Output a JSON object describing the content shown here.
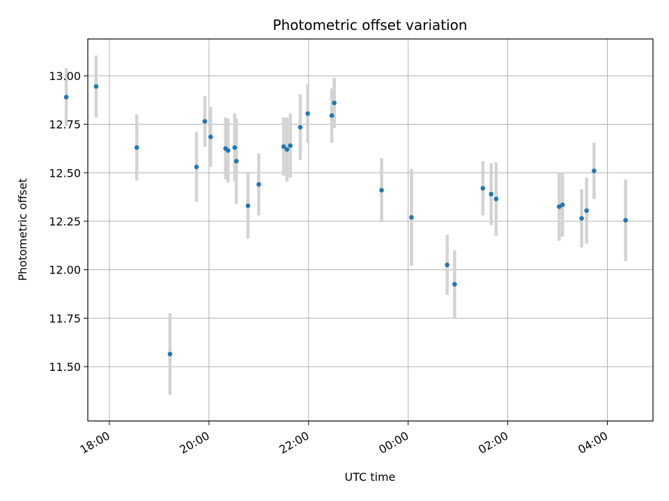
{
  "chart_data": {
    "type": "scatter",
    "title": "Photometric offset variation",
    "xlabel": "UTC time",
    "ylabel": "Photometric offset",
    "x_unit": "UTC time (HH:MM)",
    "xlim": [
      "17:34",
      "04:55"
    ],
    "ylim": [
      11.22,
      13.19
    ],
    "x_ticks": [
      "18:00",
      "20:00",
      "22:00",
      "00:00",
      "02:00",
      "04:00"
    ],
    "y_ticks": [
      11.5,
      11.75,
      12.0,
      12.25,
      12.5,
      12.75,
      13.0
    ],
    "grid": true,
    "point_color": "#1f77b4",
    "errorbar_color": "#d3d3d3",
    "points": [
      {
        "t": "17:08",
        "y": 12.89,
        "err": 0.15
      },
      {
        "t": "17:44",
        "y": 12.945,
        "err": 0.16
      },
      {
        "t": "18:33",
        "y": 12.63,
        "err": 0.17
      },
      {
        "t": "19:13",
        "y": 11.565,
        "err": 0.21
      },
      {
        "t": "19:45",
        "y": 12.53,
        "err": 0.18
      },
      {
        "t": "19:55",
        "y": 12.765,
        "err": 0.13
      },
      {
        "t": "20:02",
        "y": 12.685,
        "err": 0.155
      },
      {
        "t": "20:20",
        "y": 12.625,
        "err": 0.16
      },
      {
        "t": "20:23",
        "y": 12.615,
        "err": 0.165
      },
      {
        "t": "20:31",
        "y": 12.63,
        "err": 0.175
      },
      {
        "t": "20:33",
        "y": 12.56,
        "err": 0.22
      },
      {
        "t": "20:47",
        "y": 12.33,
        "err": 0.17
      },
      {
        "t": "21:00",
        "y": 12.44,
        "err": 0.16
      },
      {
        "t": "21:30",
        "y": 12.635,
        "err": 0.15
      },
      {
        "t": "21:34",
        "y": 12.62,
        "err": 0.165
      },
      {
        "t": "21:38",
        "y": 12.64,
        "err": 0.165
      },
      {
        "t": "21:50",
        "y": 12.735,
        "err": 0.17
      },
      {
        "t": "21:59",
        "y": 12.805,
        "err": 0.15
      },
      {
        "t": "22:28",
        "y": 12.795,
        "err": 0.14
      },
      {
        "t": "22:31",
        "y": 12.86,
        "err": 0.13
      },
      {
        "t": "23:28",
        "y": 12.41,
        "err": 0.165
      },
      {
        "t": "00:04",
        "y": 12.27,
        "err": 0.25
      },
      {
        "t": "00:47",
        "y": 12.025,
        "err": 0.155
      },
      {
        "t": "00:56",
        "y": 11.925,
        "err": 0.175
      },
      {
        "t": "01:30",
        "y": 12.42,
        "err": 0.14
      },
      {
        "t": "01:40",
        "y": 12.39,
        "err": 0.16
      },
      {
        "t": "01:46",
        "y": 12.365,
        "err": 0.19
      },
      {
        "t": "03:02",
        "y": 12.325,
        "err": 0.175
      },
      {
        "t": "03:06",
        "y": 12.335,
        "err": 0.165
      },
      {
        "t": "03:29",
        "y": 12.265,
        "err": 0.15
      },
      {
        "t": "03:35",
        "y": 12.305,
        "err": 0.17
      },
      {
        "t": "03:44",
        "y": 12.51,
        "err": 0.145
      },
      {
        "t": "04:22",
        "y": 12.255,
        "err": 0.21
      }
    ]
  }
}
